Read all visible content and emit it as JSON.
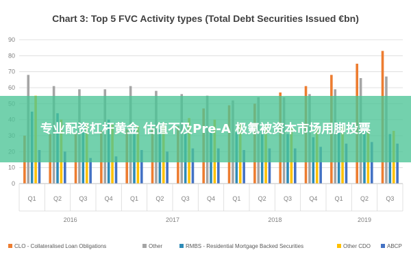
{
  "chart_data": {
    "type": "bar",
    "title": "Chart 3: Top 5 FVC Activity types (Total Debt Securities Issued €bn)",
    "xlabel": "",
    "ylabel": "",
    "ylim": [
      0,
      90
    ],
    "yticks": [
      0,
      10,
      20,
      30,
      40,
      50,
      60,
      70,
      80,
      90
    ],
    "grid": true,
    "legend_position": "bottom",
    "categories": [
      "Q1",
      "Q2",
      "Q3",
      "Q4",
      "Q1",
      "Q2",
      "Q3",
      "Q4",
      "Q1",
      "Q2",
      "Q3",
      "Q4",
      "Q1",
      "Q2",
      "Q3"
    ],
    "year_groups": [
      {
        "label": "2016",
        "quarters": 4
      },
      {
        "label": "2017",
        "quarters": 4
      },
      {
        "label": "2018",
        "quarters": 4
      },
      {
        "label": "2019",
        "quarters": 3
      }
    ],
    "series": [
      {
        "name": "CLO - Collateralised Loan Obligations",
        "color": "#ed7d31",
        "values": [
          30,
          31,
          32,
          33,
          34,
          35,
          36,
          47,
          49,
          50,
          57,
          61,
          68,
          75,
          83
        ]
      },
      {
        "name": "Other",
        "color": "#a5a5a5",
        "values": [
          68,
          61,
          59,
          59,
          61,
          58,
          56,
          55,
          52,
          54,
          54,
          56,
          59,
          66,
          67
        ]
      },
      {
        "name": "RMBS - Residential Mortgage Backed Securities",
        "color": "#2e8bb7",
        "values": [
          45,
          44,
          38,
          40,
          35,
          34,
          32,
          33,
          32,
          33,
          31,
          29,
          38,
          35,
          31
        ]
      },
      {
        "name": "Other CDO",
        "color": "#ffc000",
        "values": [
          55,
          40,
          38,
          37,
          36,
          38,
          41,
          40,
          37,
          36,
          35,
          35,
          36,
          34,
          33
        ]
      },
      {
        "name": "ABCP",
        "color": "#4472c4",
        "values": [
          21,
          20,
          16,
          17,
          21,
          20,
          22,
          22,
          21,
          22,
          22,
          23,
          25,
          26,
          25
        ]
      }
    ]
  },
  "banner": {
    "text": "专业配资杠杆黄金 估值不及Pre-A 极氪被资本市场用脚投票"
  }
}
